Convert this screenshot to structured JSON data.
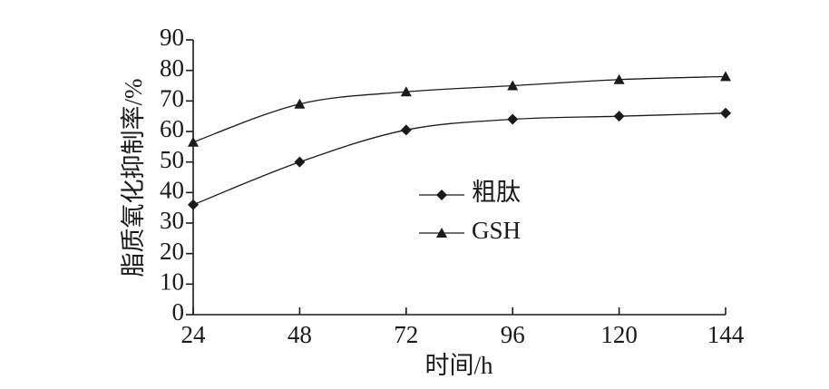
{
  "chart_data": {
    "type": "line",
    "x": [
      24,
      48,
      72,
      96,
      120,
      144
    ],
    "xlim": [
      24,
      144
    ],
    "xticks": [
      24,
      48,
      72,
      96,
      120,
      144
    ],
    "ylim": [
      0,
      90
    ],
    "yticks": [
      0,
      10,
      20,
      30,
      40,
      50,
      60,
      70,
      80,
      90
    ],
    "x_label": "时间/h",
    "y_label": "脂质氧化抑制率/%",
    "series": [
      {
        "name": "粗肽",
        "color": "#1a1a1a",
        "marker": "diamond",
        "values": [
          36,
          50,
          60.5,
          64,
          65,
          66
        ]
      },
      {
        "name": "GSH",
        "color": "#1a1a1a",
        "marker": "triangle",
        "values": [
          56.5,
          69,
          73,
          75,
          77,
          78
        ]
      }
    ]
  }
}
